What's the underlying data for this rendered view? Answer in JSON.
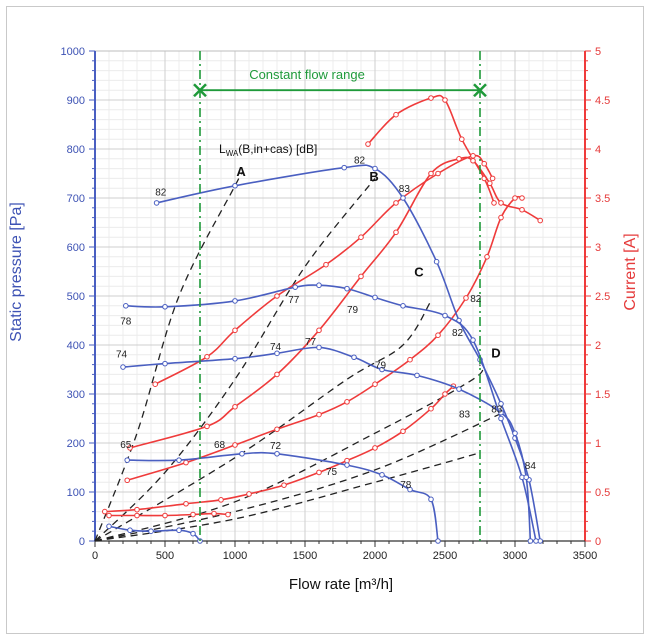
{
  "chart_data": {
    "type": "line",
    "xlabel": "Flow rate [m³/h]",
    "ylabel_left": "Static pressure [Pa]",
    "ylabel_right": "Current [A]",
    "xlim": [
      0,
      3500
    ],
    "ylim_left": [
      0,
      1000
    ],
    "ylim_right": [
      0,
      5
    ],
    "x_ticks": [
      "0",
      "500",
      "1000",
      "1500",
      "2000",
      "2500",
      "3000",
      "3500"
    ],
    "y_ticks_left": [
      "0",
      "100",
      "200",
      "300",
      "400",
      "500",
      "600",
      "700",
      "800",
      "900",
      "1000"
    ],
    "y_ticks_right": [
      "0",
      "0.5",
      "1",
      "1.5",
      "2",
      "2.5",
      "3",
      "3.5",
      "4",
      "4.5",
      "5"
    ],
    "grid": true,
    "colors": {
      "pressure": "#4a5fc1",
      "current": "#ef3b3b",
      "flow_range": "#1f9a3a",
      "system": "#222222"
    },
    "constant_flow_range": {
      "label": "Constant flow range",
      "x_min": 750,
      "x_max": 2750,
      "y": 920
    },
    "lwa_label": {
      "main": "L",
      "sub": "WA",
      "rest": "(B,in+cas) [dB]"
    },
    "pressure_series": [
      {
        "points": [
          [
            440,
            690
          ],
          [
            1000,
            725
          ],
          [
            1780,
            762
          ],
          [
            2000,
            760
          ],
          [
            2200,
            700
          ],
          [
            2440,
            570
          ],
          [
            2600,
            450
          ],
          [
            2750,
            370
          ],
          [
            2900,
            280
          ],
          [
            3000,
            210
          ],
          [
            3100,
            125
          ],
          [
            3180,
            0
          ]
        ]
      },
      {
        "points": [
          [
            220,
            480
          ],
          [
            500,
            478
          ],
          [
            1000,
            490
          ],
          [
            1430,
            518
          ],
          [
            1600,
            522
          ],
          [
            1800,
            515
          ],
          [
            2000,
            497
          ],
          [
            2200,
            480
          ],
          [
            2500,
            460
          ],
          [
            2700,
            410
          ],
          [
            2900,
            250
          ],
          [
            3050,
            130
          ],
          [
            3150,
            0
          ]
        ]
      },
      {
        "points": [
          [
            200,
            355
          ],
          [
            500,
            362
          ],
          [
            1000,
            372
          ],
          [
            1300,
            383
          ],
          [
            1600,
            395
          ],
          [
            1850,
            375
          ],
          [
            2050,
            350
          ],
          [
            2300,
            338
          ],
          [
            2600,
            310
          ],
          [
            2900,
            262
          ],
          [
            3000,
            220
          ],
          [
            3080,
            130
          ],
          [
            3110,
            0
          ]
        ]
      },
      {
        "points": [
          [
            230,
            165
          ],
          [
            600,
            165
          ],
          [
            1050,
            178
          ],
          [
            1300,
            178
          ],
          [
            1800,
            155
          ],
          [
            2050,
            135
          ],
          [
            2250,
            105
          ],
          [
            2400,
            85
          ],
          [
            2450,
            0
          ]
        ]
      },
      {
        "points": [
          [
            100,
            30
          ],
          [
            250,
            22
          ],
          [
            400,
            20
          ],
          [
            600,
            22
          ],
          [
            700,
            15
          ],
          [
            750,
            0
          ]
        ]
      }
    ],
    "pressure_labels": [
      "82",
      "82",
      "83",
      "82",
      "84",
      "78",
      "77",
      "79",
      "82",
      "83",
      "74",
      "74",
      "77",
      "79",
      "83",
      "65",
      "68",
      "72",
      "75",
      "78"
    ],
    "current_series": [
      {
        "points": [
          [
            1950,
            4.05
          ],
          [
            2150,
            4.35
          ],
          [
            2400,
            4.52
          ],
          [
            2500,
            4.5
          ],
          [
            2620,
            4.1
          ],
          [
            2780,
            3.7
          ],
          [
            2850,
            3.45
          ]
        ]
      },
      {
        "points": [
          [
            250,
            0.95
          ],
          [
            800,
            1.17
          ],
          [
            1000,
            1.37
          ],
          [
            1300,
            1.7
          ],
          [
            1600,
            2.15
          ],
          [
            1900,
            2.7
          ],
          [
            2150,
            3.15
          ],
          [
            2400,
            3.75
          ],
          [
            2600,
            3.9
          ],
          [
            2700,
            3.88
          ],
          [
            2820,
            3.65
          ],
          [
            2900,
            3.45
          ],
          [
            3050,
            3.38
          ],
          [
            3180,
            3.27
          ]
        ]
      },
      {
        "points": [
          [
            430,
            1.6
          ],
          [
            800,
            1.88
          ],
          [
            1000,
            2.15
          ],
          [
            1300,
            2.5
          ],
          [
            1650,
            2.82
          ],
          [
            1900,
            3.1
          ],
          [
            2150,
            3.45
          ],
          [
            2450,
            3.75
          ],
          [
            2700,
            3.93
          ],
          [
            2780,
            3.85
          ],
          [
            2840,
            3.7
          ]
        ]
      },
      {
        "points": [
          [
            230,
            0.62
          ],
          [
            650,
            0.8
          ],
          [
            1000,
            0.98
          ],
          [
            1300,
            1.14
          ],
          [
            1600,
            1.29
          ],
          [
            1800,
            1.42
          ],
          [
            2000,
            1.6
          ],
          [
            2250,
            1.85
          ],
          [
            2450,
            2.1
          ],
          [
            2650,
            2.48
          ],
          [
            2800,
            2.9
          ],
          [
            2900,
            3.3
          ],
          [
            3000,
            3.5
          ],
          [
            3050,
            3.5
          ]
        ]
      },
      {
        "points": [
          [
            70,
            0.3
          ],
          [
            300,
            0.32
          ],
          [
            650,
            0.38
          ],
          [
            900,
            0.42
          ],
          [
            1100,
            0.48
          ],
          [
            1350,
            0.57
          ],
          [
            1600,
            0.7
          ],
          [
            1800,
            0.82
          ],
          [
            2000,
            0.95
          ],
          [
            2200,
            1.12
          ],
          [
            2400,
            1.35
          ],
          [
            2500,
            1.5
          ],
          [
            2560,
            1.58
          ]
        ]
      },
      {
        "points": [
          [
            100,
            0.26
          ],
          [
            300,
            0.26
          ],
          [
            500,
            0.26
          ],
          [
            700,
            0.27
          ],
          [
            850,
            0.28
          ],
          [
            950,
            0.27
          ]
        ]
      }
    ],
    "system_curves": [
      {
        "label": "A",
        "points": [
          [
            0,
            0
          ],
          [
            300,
            220
          ],
          [
            600,
            500
          ],
          [
            1000,
            725
          ],
          [
            1050,
            750
          ]
        ]
      },
      {
        "label": "B",
        "points": [
          [
            0,
            0
          ],
          [
            500,
            140
          ],
          [
            1000,
            330
          ],
          [
            1500,
            560
          ],
          [
            2000,
            740
          ]
        ]
      },
      {
        "label": "C",
        "points": [
          [
            0,
            0
          ],
          [
            1000,
            170
          ],
          [
            1800,
            330
          ],
          [
            2200,
            400
          ],
          [
            2400,
            490
          ]
        ]
      },
      {
        "label": "D",
        "points": [
          [
            0,
            0
          ],
          [
            1000,
            80
          ],
          [
            2000,
            220
          ],
          [
            2700,
            330
          ],
          [
            2750,
            360
          ]
        ]
      },
      {
        "points": [
          [
            0,
            0
          ],
          [
            1000,
            60
          ],
          [
            2000,
            145
          ],
          [
            2900,
            260
          ]
        ]
      },
      {
        "points": [
          [
            0,
            0
          ],
          [
            1000,
            45
          ],
          [
            2000,
            120
          ],
          [
            2750,
            180
          ]
        ]
      }
    ],
    "letters": [
      "A",
      "B",
      "C",
      "D"
    ]
  }
}
